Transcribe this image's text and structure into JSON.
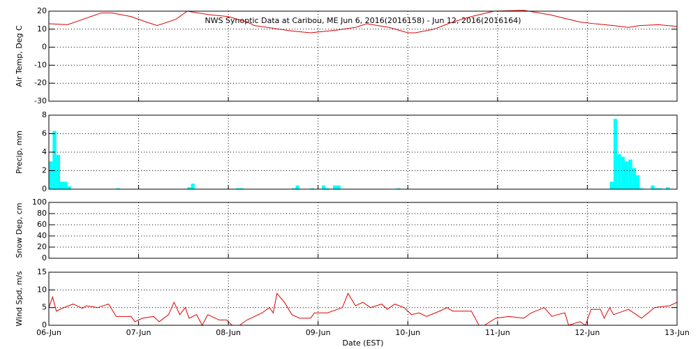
{
  "chart_data": [
    {
      "type": "line",
      "title": "NWS Synoptic Data at Caribou, ME   Jun  6, 2016(2016158) - Jun 12, 2016(2016164)",
      "ylabel": "Air Temp, Deg C",
      "ylim": [
        -30,
        20
      ],
      "yticks": [
        -30,
        -20,
        -10,
        0,
        10,
        20
      ],
      "xlim": [
        0,
        168
      ],
      "xticks": [
        0,
        24,
        48,
        72,
        96,
        120,
        144,
        168
      ],
      "grid": true,
      "series": [
        {
          "name": "Air Temp",
          "color": "#dd0000",
          "x": [
            0,
            5,
            14,
            17,
            22,
            26,
            29,
            34,
            37,
            43,
            48,
            53,
            55,
            65,
            70,
            77,
            82,
            85,
            91,
            96,
            98,
            103,
            108,
            113,
            119,
            127,
            134,
            142,
            146,
            151,
            155,
            158,
            163,
            168
          ],
          "values": [
            13,
            12.5,
            19,
            19,
            17,
            14,
            12,
            15.5,
            20,
            18,
            17,
            14,
            12,
            9,
            8,
            9.5,
            11,
            13,
            11,
            8,
            8,
            10,
            14,
            17,
            20,
            20.5,
            18,
            14,
            13,
            12,
            11,
            12,
            12.5,
            11.5
          ]
        }
      ]
    },
    {
      "type": "bar",
      "ylabel": "Precip, mm",
      "ylim": [
        0,
        8
      ],
      "yticks": [
        0,
        2,
        4,
        6,
        8
      ],
      "xlim": [
        0,
        168
      ],
      "xticks": [
        0,
        24,
        48,
        72,
        96,
        120,
        144,
        168
      ],
      "grid": true,
      "series": [
        {
          "name": "Precip",
          "color": "#00ffff",
          "x": [
            0,
            1,
            2,
            3,
            4,
            5,
            18,
            37,
            38,
            50,
            51,
            65,
            66,
            70,
            73,
            74,
            76,
            77,
            93,
            150,
            151,
            152,
            153,
            154,
            155,
            156,
            157,
            158,
            161,
            162,
            163,
            165
          ],
          "values": [
            3.0,
            6.3,
            3.7,
            0.8,
            0.8,
            0.3,
            0.1,
            0.2,
            0.6,
            0.1,
            0.1,
            0.1,
            0.4,
            0.1,
            0.4,
            0.1,
            0.4,
            0.4,
            0.1,
            0.8,
            7.6,
            3.8,
            3.5,
            3.0,
            3.2,
            2.3,
            1.5,
            0.1,
            0.4,
            0.1,
            0.1,
            0.2
          ]
        }
      ]
    },
    {
      "type": "line",
      "ylabel": "Snow Dep, cm",
      "ylim": [
        0,
        100
      ],
      "yticks": [
        0,
        20,
        40,
        60,
        80,
        100
      ],
      "xlim": [
        0,
        168
      ],
      "xticks": [
        0,
        24,
        48,
        72,
        96,
        120,
        144,
        168
      ],
      "grid": true,
      "series": []
    },
    {
      "type": "line",
      "ylabel": "Wind Spd, m/s",
      "xlabel": "Date (EST)",
      "ylim": [
        0,
        15
      ],
      "yticks": [
        0,
        5,
        10,
        15
      ],
      "xlim": [
        0,
        168
      ],
      "grid": true,
      "xticks": [
        {
          "value": 0,
          "label": "06-Jun"
        },
        {
          "value": 24,
          "label": "07-Jun"
        },
        {
          "value": 48,
          "label": "08-Jun"
        },
        {
          "value": 72,
          "label": "09-Jun"
        },
        {
          "value": 96,
          "label": "10-Jun"
        },
        {
          "value": 120,
          "label": "11-Jun"
        },
        {
          "value": 144,
          "label": "12-Jun"
        },
        {
          "value": 168,
          "label": "13-Jun"
        }
      ],
      "series": [
        {
          "name": "Wind Spd",
          "color": "#dd0000",
          "x": [
            0,
            1,
            2,
            4,
            6.5,
            9,
            10,
            13,
            16,
            18,
            22,
            23,
            25,
            28,
            29.5,
            32,
            33.5,
            35,
            36.5,
            37.5,
            39.5,
            41,
            42.5,
            45.5,
            47.5,
            49,
            51,
            53,
            57,
            59,
            60,
            61,
            63,
            65,
            67,
            70,
            71,
            74.5,
            78.5,
            80,
            82,
            84,
            86,
            89,
            90.5,
            92.5,
            95,
            97,
            99,
            101,
            104.5,
            106.5,
            108,
            113,
            115,
            116.5,
            119.5,
            123,
            127,
            129,
            132.5,
            134.5,
            136,
            138,
            139,
            142,
            143.5,
            145,
            147.5,
            148.5,
            150,
            151,
            155,
            158.5,
            162,
            166,
            168
          ],
          "values": [
            5,
            8,
            4,
            5,
            6,
            4.8,
            5.5,
            5,
            6,
            2.5,
            2.5,
            1,
            2,
            2.5,
            1,
            3,
            6.5,
            3,
            5,
            2,
            3,
            0,
            3,
            1.5,
            1.5,
            0,
            0,
            1.5,
            3.5,
            5,
            3.5,
            9,
            6.5,
            3,
            2,
            2,
            3.5,
            3.5,
            5,
            9,
            5.5,
            6.5,
            5,
            6,
            4.5,
            6,
            5,
            3,
            3.5,
            2.5,
            4,
            5,
            4,
            4,
            0,
            0,
            2,
            2.5,
            2,
            3.5,
            5,
            2.5,
            3,
            3.5,
            0,
            1,
            0,
            4.5,
            4.5,
            2,
            5,
            3,
            4.5,
            2,
            5,
            5.5,
            6.5
          ]
        }
      ]
    }
  ]
}
